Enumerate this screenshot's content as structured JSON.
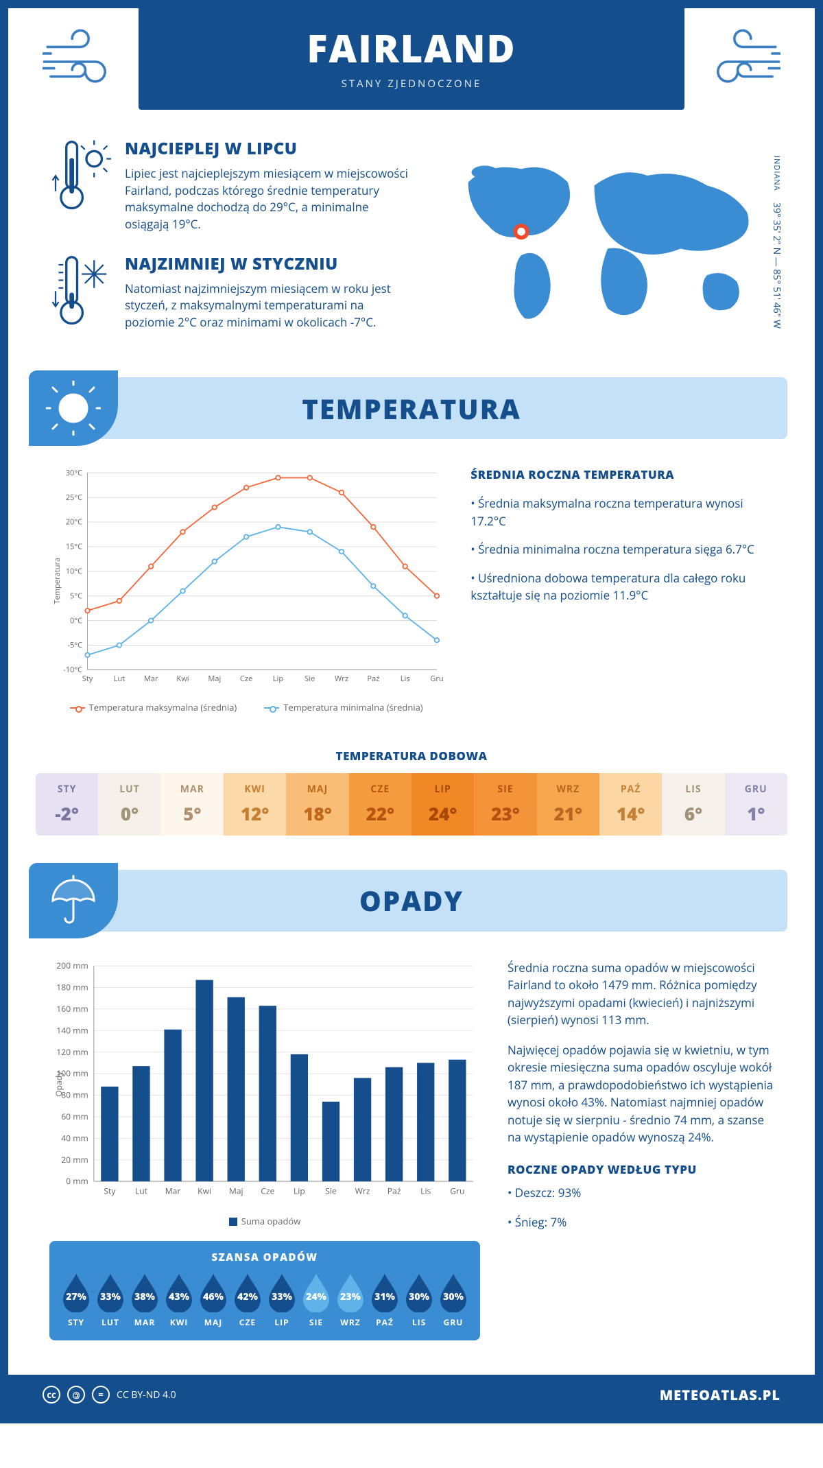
{
  "header": {
    "title": "FAIRLAND",
    "subtitle": "STANY ZJEDNOCZONE"
  },
  "location": {
    "region": "INDIANA",
    "coordinates": "39° 35' 2\" N — 85° 51' 46\" W",
    "marker": {
      "cx_pct": 24,
      "cy_pct": 44,
      "color": "#f04a2b"
    }
  },
  "facts": {
    "hot": {
      "title": "NAJCIEPLEJ W LIPCU",
      "body": "Lipiec jest najcieplejszym miesiącem w miejscowości Fairland, podczas którego średnie temperatury maksymalne dochodzą do 29°C, a minimalne osiągają 19°C."
    },
    "cold": {
      "title": "NAJZIMNIEJ W STYCZNIU",
      "body": "Natomiast najzimniejszym miesiącem w roku jest styczeń, z maksymalnymi temperaturami na poziomie 2°C oraz minimami w okolicach -7°C."
    }
  },
  "temperature": {
    "section_title": "TEMPERATURA",
    "chart": {
      "type": "line",
      "months": [
        "Sty",
        "Lut",
        "Mar",
        "Kwi",
        "Maj",
        "Cze",
        "Lip",
        "Sie",
        "Wrz",
        "Paź",
        "Lis",
        "Gru"
      ],
      "max_series": [
        2,
        4,
        11,
        18,
        23,
        27,
        29,
        29,
        26,
        19,
        11,
        5
      ],
      "min_series": [
        -7,
        -5,
        0,
        6,
        12,
        17,
        19,
        18,
        14,
        7,
        1,
        -4
      ],
      "ylim": [
        -10,
        30
      ],
      "ytick_step": 5,
      "y_unit": "°C",
      "ylabel": "Temperatura",
      "colors": {
        "max": "#f26a3d",
        "min": "#5fb3e8",
        "grid": "#d8d8d8",
        "axis": "#999999",
        "background": "#ffffff"
      },
      "line_width": 2,
      "marker_radius": 3.5,
      "legend": {
        "max": "Temperatura maksymalna (średnia)",
        "min": "Temperatura minimalna (średnia)"
      }
    },
    "annual": {
      "title": "ŚREDNIA ROCZNA TEMPERATURA",
      "lines": [
        "• Średnia maksymalna roczna temperatura wynosi 17.2°C",
        "• Średnia minimalna roczna temperatura sięga 6.7°C",
        "• Uśredniona dobowa temperatura dla całego roku kształtuje się na poziomie 11.9°C"
      ]
    },
    "daily": {
      "title": "TEMPERATURA DOBOWA",
      "months": [
        "STY",
        "LUT",
        "MAR",
        "KWI",
        "MAJ",
        "CZE",
        "LIP",
        "SIE",
        "WRZ",
        "PAŹ",
        "LIS",
        "GRU"
      ],
      "values": [
        "-2°",
        "0°",
        "5°",
        "12°",
        "18°",
        "22°",
        "24°",
        "23°",
        "21°",
        "14°",
        "6°",
        "1°"
      ],
      "cell_bg": [
        "#e6e2f3",
        "#f5f0e9",
        "#fdf6ed",
        "#fbd9a8",
        "#f9bd77",
        "#f59c3e",
        "#f18826",
        "#f3933a",
        "#f7a74d",
        "#fbd7a5",
        "#f6f1eb",
        "#ece9f5"
      ],
      "value_color": [
        "#7a76a0",
        "#a29478",
        "#b09271",
        "#c47f33",
        "#c1691a",
        "#b6560e",
        "#a94803",
        "#b55110",
        "#bc6520",
        "#c58236",
        "#9f9279",
        "#8682a6"
      ]
    }
  },
  "precipitation": {
    "section_title": "OPADY",
    "chart": {
      "type": "bar",
      "months": [
        "Sty",
        "Lut",
        "Mar",
        "Kwi",
        "Maj",
        "Cze",
        "Lip",
        "Sie",
        "Wrz",
        "Paź",
        "Lis",
        "Gru"
      ],
      "values": [
        88,
        107,
        141,
        187,
        171,
        163,
        118,
        74,
        96,
        106,
        110,
        113
      ],
      "ylim": [
        0,
        200
      ],
      "ytick_step": 20,
      "y_unit": " mm",
      "ylabel": "Opady",
      "bar_color": "#144e8c",
      "grid_color": "#e5e5e5",
      "bar_width": 0.55,
      "legend": "Suma opadów"
    },
    "text": {
      "p1": "Średnia roczna suma opadów w miejscowości Fairland to około 1479 mm. Różnica pomiędzy najwyższymi opadami (kwiecień) i najniższymi (sierpień) wynosi 113 mm.",
      "p2": "Najwięcej opadów pojawia się w kwietniu, w tym okresie miesięczna suma opadów oscyluje wokół 187 mm, a prawdopodobieństwo ich wystąpienia wynosi około 43%. Natomiast najmniej opadów notuje się w sierpniu - średnio 74 mm, a szanse na wystąpienie opadów wynoszą 24%."
    },
    "chance": {
      "title": "SZANSA OPADÓW",
      "months": [
        "STY",
        "LUT",
        "MAR",
        "KWI",
        "MAJ",
        "CZE",
        "LIP",
        "SIE",
        "WRZ",
        "PAŹ",
        "LIS",
        "GRU"
      ],
      "pct": [
        27,
        33,
        38,
        43,
        46,
        42,
        33,
        24,
        23,
        31,
        30,
        30
      ],
      "drop_dark": "#144e8c",
      "drop_light": "#5fb3e8",
      "light_threshold": 26
    },
    "by_type": {
      "title": "ROCZNE OPADY WEDŁUG TYPU",
      "lines": [
        "• Deszcz: 93%",
        "• Śnieg: 7%"
      ]
    }
  },
  "footer": {
    "license": "CC BY-ND 4.0",
    "site": "METEOATLAS.PL"
  }
}
